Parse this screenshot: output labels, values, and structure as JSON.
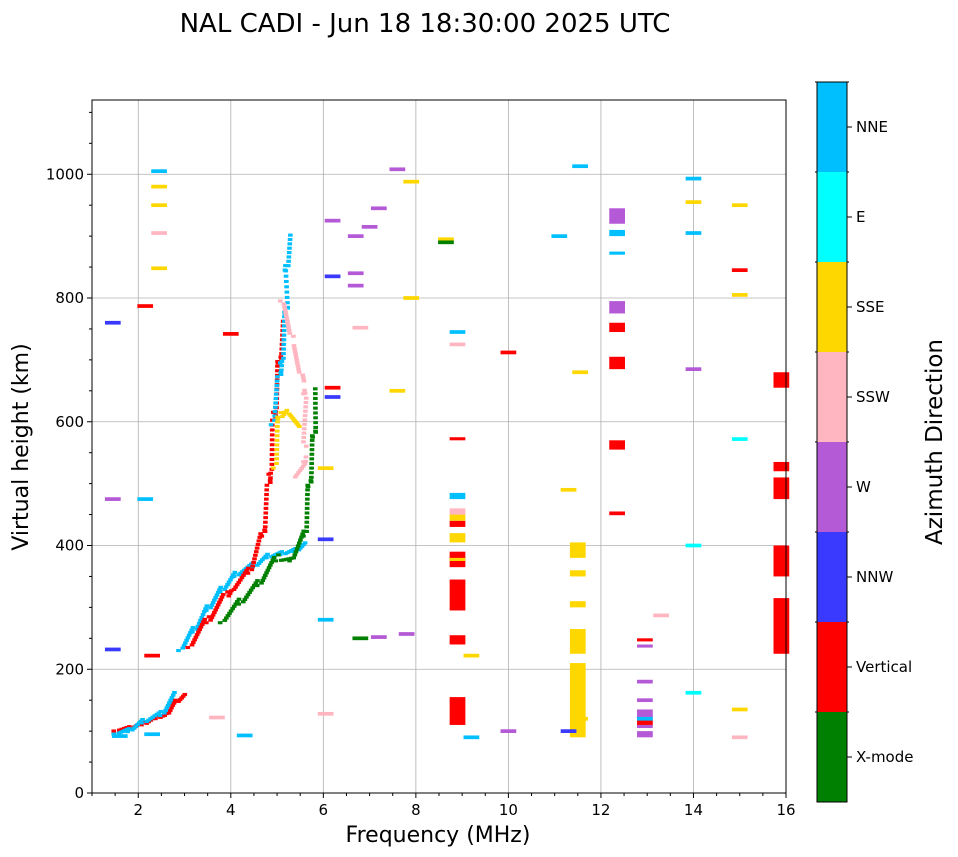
{
  "chart_data": {
    "type": "scatter",
    "title": "NAL CADI - Jun 18 18:30:00 2025 UTC",
    "xlabel": "Frequency (MHz)",
    "ylabel": "Virtual height (km)",
    "colorbar_label": "Azimuth Direction",
    "xlim": [
      1,
      16
    ],
    "ylim": [
      0,
      1120
    ],
    "xticks": [
      2,
      4,
      6,
      8,
      10,
      12,
      14,
      16
    ],
    "yticks": [
      0,
      200,
      400,
      600,
      800,
      1000
    ],
    "grid": true,
    "categories": [
      {
        "name": "X-mode",
        "color": "#008000"
      },
      {
        "name": "Vertical",
        "color": "#ff0000"
      },
      {
        "name": "NNW",
        "color": "#3a3aff"
      },
      {
        "name": "W",
        "color": "#b45ad6"
      },
      {
        "name": "SSW",
        "color": "#ffb6c1"
      },
      {
        "name": "SSE",
        "color": "#ffd700"
      },
      {
        "name": "E",
        "color": "#00ffff"
      },
      {
        "name": "NNE",
        "color": "#00bfff"
      }
    ],
    "segments": [
      {
        "label": "E-layer trace",
        "category": "Vertical",
        "points": [
          [
            1.5,
            105
          ],
          [
            1.8,
            108
          ],
          [
            2.1,
            115
          ],
          [
            2.4,
            125
          ],
          [
            2.6,
            130
          ],
          [
            2.8,
            150
          ],
          [
            3.0,
            160
          ]
        ]
      },
      {
        "label": "E-layer trace",
        "category": "NNE",
        "points": [
          [
            1.5,
            100
          ],
          [
            1.8,
            104
          ],
          [
            2.1,
            118
          ],
          [
            2.5,
            130
          ],
          [
            2.8,
            160
          ]
        ]
      },
      {
        "label": "F-layer trace",
        "category": "NNE",
        "points": [
          [
            2.9,
            235
          ],
          [
            3.2,
            265
          ],
          [
            3.5,
            300
          ],
          [
            3.8,
            330
          ],
          [
            4.1,
            355
          ],
          [
            4.5,
            370
          ],
          [
            4.8,
            385
          ],
          [
            5.1,
            390
          ],
          [
            5.4,
            395
          ],
          [
            5.6,
            405
          ]
        ]
      },
      {
        "label": "F-layer trace",
        "category": "Vertical",
        "points": [
          [
            3.1,
            240
          ],
          [
            3.5,
            280
          ],
          [
            4.0,
            330
          ],
          [
            4.4,
            360
          ],
          [
            4.7,
            420
          ],
          [
            4.85,
            520
          ],
          [
            4.95,
            620
          ],
          [
            5.05,
            700
          ],
          [
            5.15,
            760
          ]
        ]
      },
      {
        "label": "F-layer trace",
        "category": "X-mode",
        "points": [
          [
            3.8,
            280
          ],
          [
            4.2,
            310
          ],
          [
            4.6,
            340
          ],
          [
            5.0,
            380
          ],
          [
            5.3,
            380
          ],
          [
            5.6,
            420
          ],
          [
            5.7,
            500
          ],
          [
            5.8,
            580
          ],
          [
            5.85,
            650
          ]
        ]
      },
      {
        "label": "spread",
        "category": "NNE",
        "points": [
          [
            4.9,
            600
          ],
          [
            5.1,
            700
          ],
          [
            5.2,
            780
          ],
          [
            5.2,
            850
          ],
          [
            5.3,
            900
          ]
        ]
      },
      {
        "label": "spread",
        "category": "SSE",
        "points": [
          [
            4.95,
            530
          ],
          [
            5.05,
            610
          ],
          [
            5.2,
            620
          ],
          [
            5.5,
            590
          ]
        ]
      },
      {
        "label": "spread",
        "category": "SSW",
        "points": [
          [
            5.1,
            800
          ],
          [
            5.6,
            650
          ],
          [
            5.6,
            540
          ],
          [
            5.4,
            510
          ]
        ]
      }
    ],
    "columns": [
      {
        "category": "Vertical",
        "x": 8.9,
        "y": [
          [
            110,
            155
          ],
          [
            240,
            255
          ],
          [
            295,
            345
          ],
          [
            365,
            390
          ],
          [
            430,
            440
          ],
          [
            570,
            575
          ]
        ]
      },
      {
        "category": "SSE",
        "x": 8.9,
        "y": [
          [
            405,
            420
          ],
          [
            440,
            450
          ],
          [
            375,
            380
          ]
        ]
      },
      {
        "category": "SSW",
        "x": 8.9,
        "y": [
          [
            450,
            460
          ]
        ]
      },
      {
        "category": "NNE",
        "x": 8.9,
        "y": [
          [
            475,
            485
          ]
        ]
      },
      {
        "category": "SSE",
        "x": 11.5,
        "y": [
          [
            90,
            210
          ],
          [
            225,
            265
          ],
          [
            300,
            310
          ],
          [
            350,
            360
          ],
          [
            380,
            405
          ]
        ]
      },
      {
        "category": "Vertical",
        "x": 12.35,
        "y": [
          [
            555,
            570
          ],
          [
            685,
            705
          ],
          [
            745,
            760
          ]
        ]
      },
      {
        "category": "W",
        "x": 12.35,
        "y": [
          [
            775,
            795
          ],
          [
            920,
            945
          ]
        ]
      },
      {
        "category": "NNE",
        "x": 12.35,
        "y": [
          [
            870,
            875
          ],
          [
            900,
            910
          ]
        ]
      },
      {
        "category": "W",
        "x": 12.95,
        "y": [
          [
            90,
            100
          ],
          [
            105,
            115
          ],
          [
            120,
            135
          ],
          [
            235,
            240
          ]
        ]
      },
      {
        "category": "Vertical",
        "x": 12.95,
        "y": [
          [
            110,
            120
          ],
          [
            245,
            250
          ]
        ]
      },
      {
        "category": "Vertical",
        "x": 15.9,
        "y": [
          [
            225,
            315
          ],
          [
            350,
            400
          ],
          [
            475,
            510
          ],
          [
            520,
            535
          ],
          [
            655,
            680
          ]
        ]
      }
    ],
    "points": [
      {
        "category": "Vertical",
        "x": 4.0,
        "y": 742
      },
      {
        "category": "Vertical",
        "x": 15.0,
        "y": 845
      },
      {
        "category": "SSE",
        "x": 15.0,
        "y": 950
      },
      {
        "category": "SSE",
        "x": 15.0,
        "y": 805
      },
      {
        "category": "SSE",
        "x": 15.0,
        "y": 135
      },
      {
        "category": "SSW",
        "x": 15.0,
        "y": 90
      },
      {
        "category": "E",
        "x": 15.0,
        "y": 572
      },
      {
        "category": "NNE",
        "x": 14.0,
        "y": 993
      },
      {
        "category": "NNE",
        "x": 14.0,
        "y": 905
      },
      {
        "category": "W",
        "x": 14.0,
        "y": 685
      },
      {
        "category": "E",
        "x": 14.0,
        "y": 400
      },
      {
        "category": "E",
        "x": 14.0,
        "y": 162
      },
      {
        "category": "SSE",
        "x": 14.0,
        "y": 955
      },
      {
        "category": "W",
        "x": 10.0,
        "y": 100
      },
      {
        "category": "Vertical",
        "x": 10.0,
        "y": 712
      },
      {
        "category": "NNE",
        "x": 9.2,
        "y": 90
      },
      {
        "category": "SSE",
        "x": 8.65,
        "y": 895
      },
      {
        "category": "X-mode",
        "x": 8.65,
        "y": 890
      },
      {
        "category": "SSE",
        "x": 7.9,
        "y": 800
      },
      {
        "category": "SSE",
        "x": 7.9,
        "y": 988
      },
      {
        "category": "W",
        "x": 7.6,
        "y": 1008
      },
      {
        "category": "W",
        "x": 6.7,
        "y": 900
      },
      {
        "category": "W",
        "x": 6.7,
        "y": 840
      },
      {
        "category": "W",
        "x": 6.7,
        "y": 820
      },
      {
        "category": "W",
        "x": 6.2,
        "y": 925
      },
      {
        "category": "NNW",
        "x": 6.2,
        "y": 835
      },
      {
        "category": "NNW",
        "x": 6.2,
        "y": 640
      },
      {
        "category": "Vertical",
        "x": 6.2,
        "y": 655
      },
      {
        "category": "W",
        "x": 7.2,
        "y": 945
      },
      {
        "category": "W",
        "x": 7.0,
        "y": 915
      },
      {
        "category": "SSW",
        "x": 6.8,
        "y": 752
      },
      {
        "category": "NNE",
        "x": 11.55,
        "y": 1013
      },
      {
        "category": "SSE",
        "x": 11.55,
        "y": 680
      },
      {
        "category": "SSE",
        "x": 11.3,
        "y": 490
      },
      {
        "category": "NNW",
        "x": 11.3,
        "y": 100
      },
      {
        "category": "NNE",
        "x": 11.1,
        "y": 900
      },
      {
        "category": "NNE",
        "x": 2.45,
        "y": 1005
      },
      {
        "category": "SSE",
        "x": 2.45,
        "y": 980
      },
      {
        "category": "SSE",
        "x": 2.45,
        "y": 950
      },
      {
        "category": "SSE",
        "x": 2.45,
        "y": 848
      },
      {
        "category": "SSW",
        "x": 2.45,
        "y": 905
      },
      {
        "category": "NNW",
        "x": 1.45,
        "y": 760
      },
      {
        "category": "Vertical",
        "x": 2.15,
        "y": 787
      },
      {
        "category": "W",
        "x": 1.45,
        "y": 475
      },
      {
        "category": "NNE",
        "x": 2.15,
        "y": 475
      },
      {
        "category": "NNW",
        "x": 1.45,
        "y": 232
      },
      {
        "category": "Vertical",
        "x": 2.3,
        "y": 222
      },
      {
        "category": "NNE",
        "x": 6.05,
        "y": 280
      },
      {
        "category": "SSW",
        "x": 6.05,
        "y": 128
      },
      {
        "category": "X-mode",
        "x": 6.8,
        "y": 250
      },
      {
        "category": "W",
        "x": 7.2,
        "y": 252
      },
      {
        "category": "W",
        "x": 7.8,
        "y": 257
      },
      {
        "category": "SSE",
        "x": 9.2,
        "y": 222
      },
      {
        "category": "SSW",
        "x": 13.3,
        "y": 287
      },
      {
        "category": "SSE",
        "x": 7.6,
        "y": 650
      },
      {
        "category": "NNW",
        "x": 6.05,
        "y": 410
      },
      {
        "category": "SSE",
        "x": 6.05,
        "y": 525
      },
      {
        "category": "SSW",
        "x": 3.7,
        "y": 122
      },
      {
        "category": "NNE",
        "x": 4.3,
        "y": 93
      },
      {
        "category": "NNE",
        "x": 2.3,
        "y": 95
      },
      {
        "category": "NNE",
        "x": 1.6,
        "y": 92
      },
      {
        "category": "SSW",
        "x": 8.9,
        "y": 725
      },
      {
        "category": "NNE",
        "x": 8.9,
        "y": 745
      },
      {
        "category": "Vertical",
        "x": 12.35,
        "y": 452
      },
      {
        "category": "NNE",
        "x": 12.95,
        "y": 120
      },
      {
        "category": "W",
        "x": 12.95,
        "y": 150
      },
      {
        "category": "W",
        "x": 12.95,
        "y": 180
      },
      {
        "category": "SSE",
        "x": 11.55,
        "y": 120
      }
    ]
  }
}
